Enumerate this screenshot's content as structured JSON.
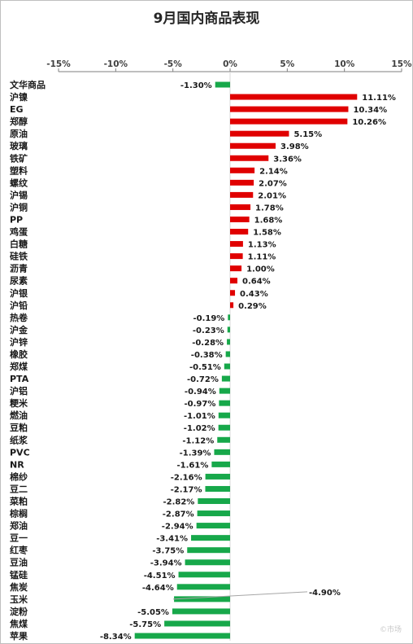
{
  "chart_data": {
    "type": "bar",
    "orientation": "horizontal",
    "title": "9月国内商品表现",
    "xlim": [
      -15,
      15
    ],
    "x_ticks": [
      "-15%",
      "-10%",
      "-5%",
      "0%",
      "5%",
      "10%",
      "15%"
    ],
    "x_tick_values": [
      -15,
      -10,
      -5,
      0,
      5,
      10,
      15
    ],
    "axis_position": "top",
    "grid": false,
    "legend": "none",
    "categories": [
      "文华商品",
      "沪镍",
      "EG",
      "郑醇",
      "原油",
      "玻璃",
      "铁矿",
      "塑料",
      "螺纹",
      "沪锡",
      "沪铜",
      "PP",
      "鸡蛋",
      "白糖",
      "硅铁",
      "沥青",
      "尿素",
      "沪银",
      "沪铅",
      "热卷",
      "沪金",
      "沪锌",
      "橡胶",
      "郑煤",
      "PTA",
      "沪铝",
      "粳米",
      "燃油",
      "豆粕",
      "纸浆",
      "PVC",
      "NR",
      "棉纱",
      "豆二",
      "菜粕",
      "棕榈",
      "郑油",
      "豆一",
      "红枣",
      "豆油",
      "锰硅",
      "焦炭",
      "玉米",
      "淀粉",
      "焦煤",
      "苹果"
    ],
    "values": [
      -1.3,
      11.11,
      10.34,
      10.26,
      5.15,
      3.98,
      3.36,
      2.14,
      2.07,
      2.01,
      1.78,
      1.68,
      1.58,
      1.13,
      1.11,
      1.0,
      0.64,
      0.43,
      0.29,
      -0.19,
      -0.23,
      -0.28,
      -0.38,
      -0.51,
      -0.72,
      -0.94,
      -0.97,
      -1.01,
      -1.02,
      -1.12,
      -1.39,
      -1.61,
      -2.16,
      -2.17,
      -2.82,
      -2.87,
      -2.94,
      -3.41,
      -3.75,
      -3.94,
      -4.51,
      -4.64,
      -4.9,
      -5.05,
      -5.75,
      -8.34
    ],
    "value_labels": [
      "-1.30%",
      "11.11%",
      "10.34%",
      "10.26%",
      "5.15%",
      "3.98%",
      "3.36%",
      "2.14%",
      "2.07%",
      "2.01%",
      "1.78%",
      "1.68%",
      "1.58%",
      "1.13%",
      "1.11%",
      "1.00%",
      "0.64%",
      "0.43%",
      "0.29%",
      "-0.19%",
      "-0.23%",
      "-0.28%",
      "-0.38%",
      "-0.51%",
      "-0.72%",
      "-0.94%",
      "-0.97%",
      "-1.01%",
      "-1.02%",
      "-1.12%",
      "-1.39%",
      "-1.61%",
      "-2.16%",
      "-2.17%",
      "-2.82%",
      "-2.87%",
      "-2.94%",
      "-3.41%",
      "-3.75%",
      "-3.94%",
      "-4.51%",
      "-4.64%",
      "-4.90%",
      "-5.05%",
      "-5.75%",
      "-8.34%"
    ],
    "colors": {
      "positive": "#e00000",
      "negative": "#17a84a",
      "axis": "#7f7f7f"
    }
  },
  "watermark": "©市场"
}
